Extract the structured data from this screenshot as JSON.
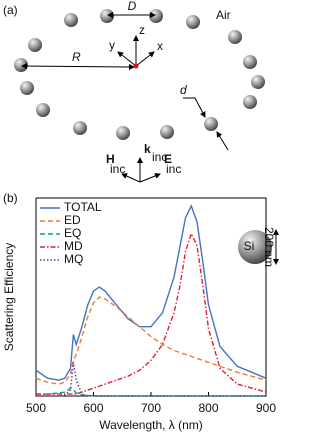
{
  "panel_a": {
    "label": "(a)",
    "D": "D",
    "air": "Air",
    "R": "R",
    "d": "d",
    "x": "x",
    "y": "y",
    "z": "z",
    "H": "H",
    "k": "k",
    "E": "E",
    "subscript": "inc"
  },
  "panel_b": {
    "label": "(b)",
    "inset_label": "Si",
    "inset_size": "200 nm"
  },
  "chart_data": {
    "type": "line",
    "xlabel": "Wavelength, λ (nm)",
    "ylabel": "Scattering Efficiency",
    "x": [
      500,
      520,
      540,
      550,
      560,
      565,
      570,
      580,
      590,
      600,
      610,
      620,
      640,
      660,
      680,
      700,
      720,
      740,
      750,
      760,
      770,
      780,
      790,
      800,
      820,
      850,
      900
    ],
    "xlim": [
      500,
      900
    ],
    "xticks": [
      500,
      600,
      700,
      800,
      900
    ],
    "ylim": [
      0,
      10
    ],
    "legend": "upper left",
    "series": [
      {
        "name": "TOTAL",
        "color": "#4472c4",
        "style": "solid",
        "values": [
          1.3,
          0.9,
          0.8,
          0.9,
          1.4,
          3.1,
          2.6,
          3.5,
          4.6,
          5.3,
          5.5,
          5.3,
          4.6,
          3.9,
          3.5,
          3.5,
          4.2,
          6.0,
          7.5,
          9.0,
          9.6,
          8.8,
          6.8,
          4.6,
          2.5,
          1.5,
          0.9
        ]
      },
      {
        "name": "ED",
        "color": "#ed7d31",
        "style": "dashed",
        "values": [
          0.9,
          0.7,
          0.6,
          0.7,
          1.1,
          1.8,
          2.1,
          3.0,
          4.0,
          4.7,
          5.0,
          4.9,
          4.5,
          4.0,
          3.5,
          3.0,
          2.6,
          2.3,
          2.2,
          2.1,
          2.0,
          1.9,
          1.8,
          1.7,
          1.5,
          1.2,
          0.8
        ]
      },
      {
        "name": "EQ",
        "color": "#00a86b",
        "style": "dashed",
        "values": [
          0.1,
          0.1,
          0.15,
          0.2,
          0.4,
          0.3,
          0.15,
          0.05,
          0.02,
          0.01,
          0,
          0,
          0,
          0,
          0,
          0,
          0,
          0,
          0,
          0,
          0,
          0,
          0,
          0,
          0,
          0,
          0
        ]
      },
      {
        "name": "MD",
        "color": "#e0203a",
        "style": "dashdot",
        "values": [
          0.1,
          0.1,
          0.1,
          0.1,
          0.1,
          0.1,
          0.1,
          0.2,
          0.3,
          0.4,
          0.5,
          0.6,
          0.8,
          1.0,
          1.3,
          1.8,
          2.6,
          4.2,
          5.5,
          7.3,
          8.2,
          7.6,
          5.6,
          3.4,
          1.4,
          0.6,
          0.2
        ]
      },
      {
        "name": "MQ",
        "color": "#7030a0",
        "style": "dotted",
        "values": [
          0,
          0,
          0,
          0.05,
          0.3,
          1.7,
          0.8,
          0.1,
          0.02,
          0,
          0,
          0,
          0,
          0,
          0,
          0,
          0,
          0,
          0,
          0,
          0,
          0,
          0,
          0,
          0,
          0,
          0
        ]
      }
    ]
  }
}
